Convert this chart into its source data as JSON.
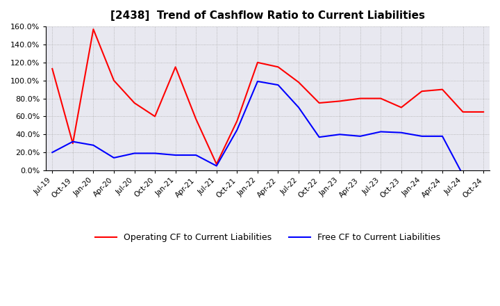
{
  "title": "[2438]  Trend of Cashflow Ratio to Current Liabilities",
  "title_fontsize": 11,
  "x_labels": [
    "Jul-19",
    "Oct-19",
    "Jan-20",
    "Apr-20",
    "Jul-20",
    "Oct-20",
    "Jan-21",
    "Apr-21",
    "Jul-21",
    "Oct-21",
    "Jan-22",
    "Apr-22",
    "Jul-22",
    "Oct-22",
    "Jan-23",
    "Apr-23",
    "Jul-23",
    "Oct-23",
    "Jan-24",
    "Apr-24",
    "Jul-24",
    "Oct-24"
  ],
  "operating_cf": [
    113,
    30,
    157,
    100,
    75,
    60,
    115,
    57,
    7,
    55,
    120,
    115,
    98,
    75,
    77,
    80,
    80,
    70,
    88,
    90,
    65,
    65
  ],
  "free_cf": [
    20,
    32,
    28,
    14,
    19,
    19,
    17,
    17,
    5,
    45,
    99,
    95,
    70,
    37,
    40,
    38,
    43,
    42,
    38,
    38,
    -5,
    null
  ],
  "ylim": [
    0,
    160
  ],
  "yticks": [
    0,
    20,
    40,
    60,
    80,
    100,
    120,
    140,
    160
  ],
  "operating_color": "#FF0000",
  "free_color": "#0000FF",
  "grid_color": "#AAAAAA",
  "plot_bg_color": "#E8E8F0",
  "background_color": "#FFFFFF",
  "legend_labels": [
    "Operating CF to Current Liabilities",
    "Free CF to Current Liabilities"
  ]
}
